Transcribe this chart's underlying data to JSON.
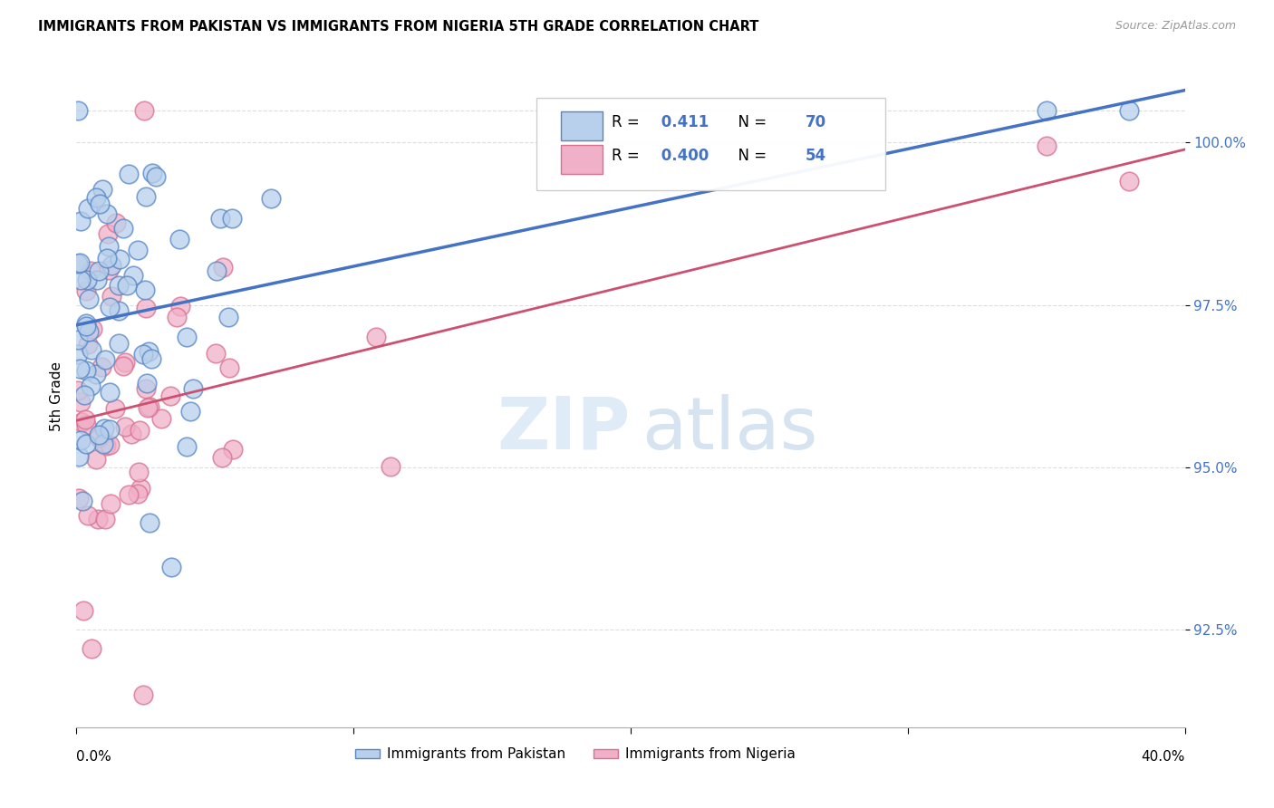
{
  "title": "IMMIGRANTS FROM PAKISTAN VS IMMIGRANTS FROM NIGERIA 5TH GRADE CORRELATION CHART",
  "source": "Source: ZipAtlas.com",
  "ylabel": "5th Grade",
  "xmin": 0.0,
  "xmax": 40.0,
  "ymin": 91.0,
  "ymax": 101.2,
  "r_pakistan": 0.411,
  "n_pakistan": 70,
  "r_nigeria": 0.4,
  "n_nigeria": 54,
  "color_pakistan_face": "#b8d0eb",
  "color_pakistan_edge": "#5585c5",
  "color_nigeria_face": "#f0b0c8",
  "color_nigeria_edge": "#d87090",
  "line_color_pakistan": "#4472c4",
  "line_color_nigeria": "#cc5070",
  "legend_label_pakistan": "Immigrants from Pakistan",
  "legend_label_nigeria": "Immigrants from Nigeria",
  "ytick_positions": [
    92.5,
    95.0,
    97.5,
    100.0
  ],
  "ytick_labels": [
    "92.5%",
    "95.0%",
    "97.5%",
    "100.0%"
  ],
  "grid_color": "#dddddd",
  "watermark_color1": "#dce9f5",
  "watermark_color2": "#c5d8ea"
}
